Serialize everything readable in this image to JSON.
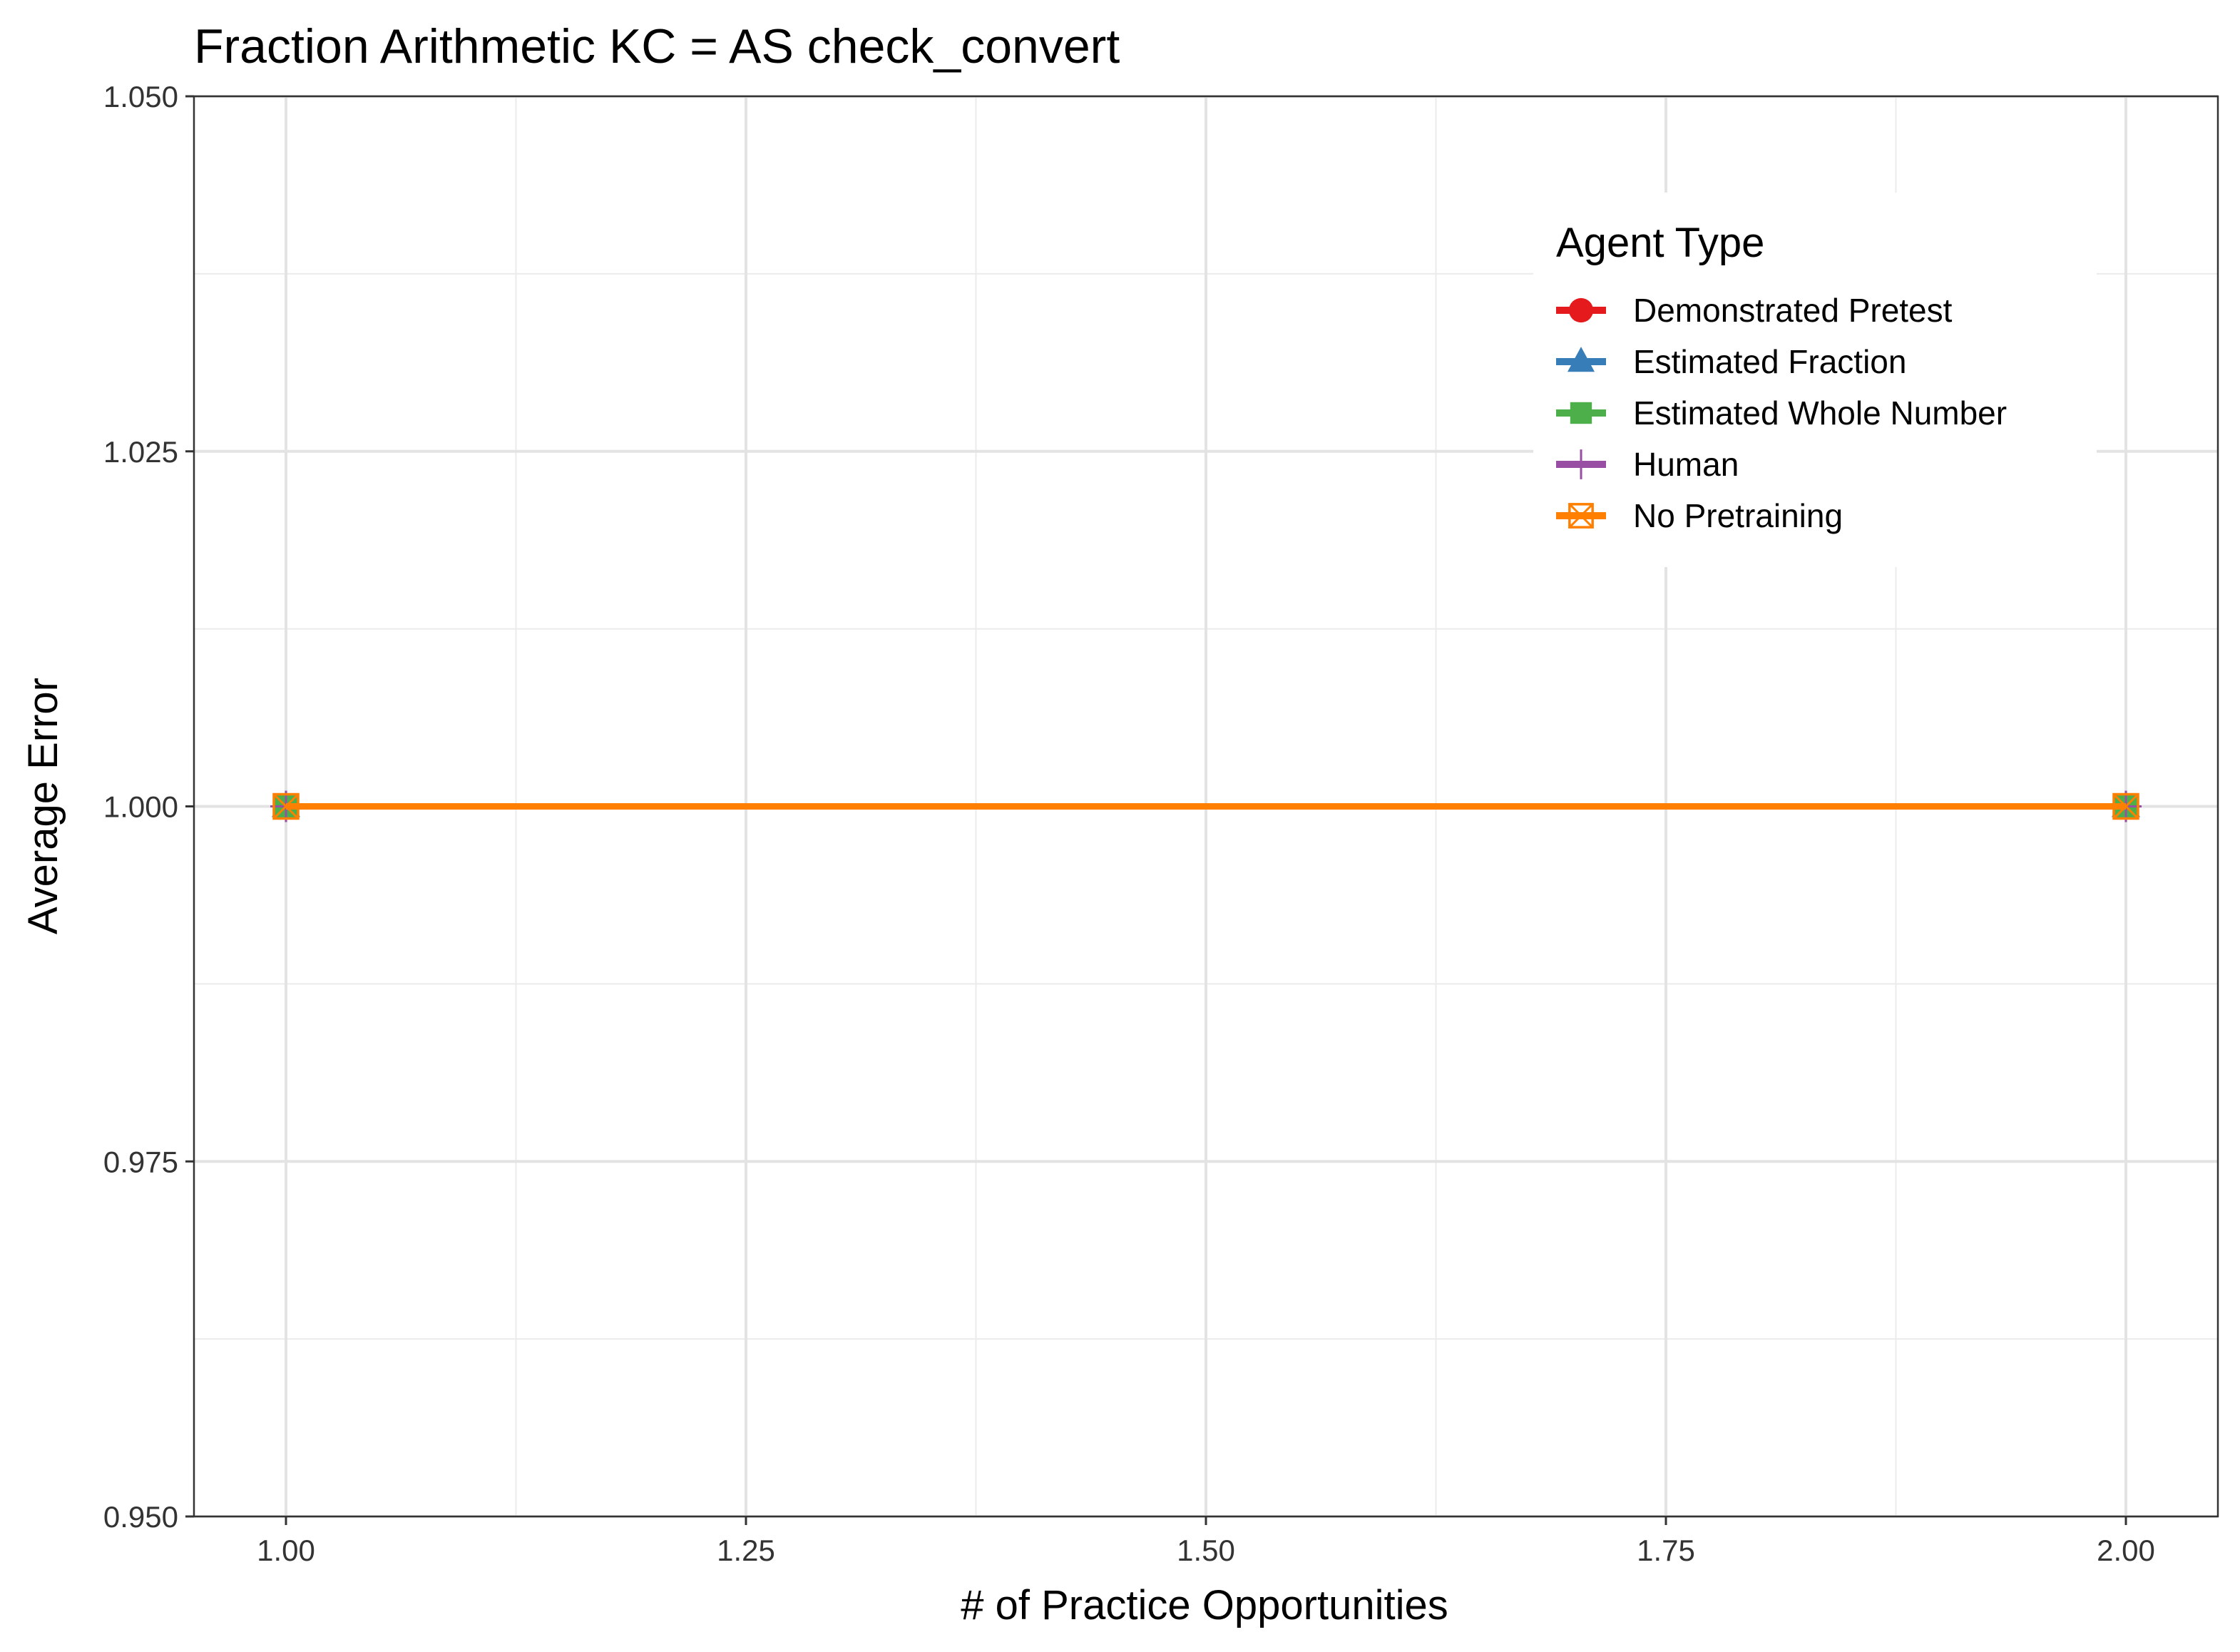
{
  "chart_data": {
    "type": "line",
    "title": "Fraction Arithmetic KC =  AS check_convert",
    "xlabel": "# of Practice Opportunities",
    "ylabel": "Average Error",
    "xlim": [
      0.95,
      2.05
    ],
    "ylim": [
      0.95,
      1.05
    ],
    "x_ticks": [
      1.0,
      1.25,
      1.5,
      1.75,
      2.0
    ],
    "x_tick_labels": [
      "1.00",
      "1.25",
      "1.50",
      "1.75",
      "2.00"
    ],
    "y_ticks": [
      0.95,
      0.975,
      1.0,
      1.025,
      1.05
    ],
    "y_tick_labels": [
      "0.950",
      "0.975",
      "1.000",
      "1.025",
      "1.050"
    ],
    "grid": true,
    "legend": {
      "title": "Agent Type",
      "position": "top-right"
    },
    "x": [
      1,
      2
    ],
    "series": [
      {
        "name": "Demonstrated Pretest",
        "values": [
          1.0,
          1.0
        ],
        "color": "#E41A1C",
        "marker": "circle"
      },
      {
        "name": "Estimated Fraction",
        "values": [
          1.0,
          1.0
        ],
        "color": "#377EB8",
        "marker": "triangle"
      },
      {
        "name": "Estimated Whole Number",
        "values": [
          1.0,
          1.0
        ],
        "color": "#4DAF4A",
        "marker": "square"
      },
      {
        "name": "Human",
        "values": [
          1.0,
          1.0
        ],
        "color": "#984EA3",
        "marker": "plus"
      },
      {
        "name": "No Pretraining",
        "values": [
          1.0,
          1.0
        ],
        "color": "#FF7F00",
        "marker": "square-cross"
      }
    ]
  }
}
